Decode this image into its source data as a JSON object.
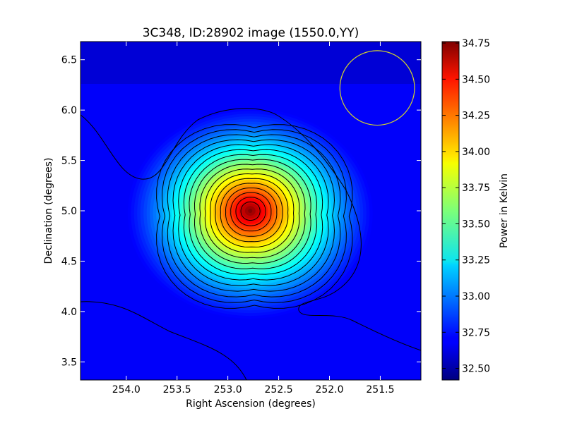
{
  "chart_data": {
    "type": "heatmap",
    "title": "3C348, ID:28902 image (1550.0,YY)",
    "xlabel": "Right Ascension (degrees)",
    "ylabel": "Declination (degrees)",
    "xlim": [
      254.45,
      251.1
    ],
    "ylim": [
      3.32,
      6.68
    ],
    "x_inverted": true,
    "xticks": [
      "254.0",
      "253.5",
      "253.0",
      "252.5",
      "252.0",
      "251.5"
    ],
    "yticks": [
      "3.5",
      "4.0",
      "4.5",
      "5.0",
      "5.5",
      "6.0",
      "6.5"
    ],
    "colorbar": {
      "label": "Power in Kelvin",
      "min": 32.42,
      "max": 34.76,
      "ticks": [
        "32.50",
        "32.75",
        "33.00",
        "33.25",
        "33.50",
        "33.75",
        "34.00",
        "34.25",
        "34.50",
        "34.75"
      ],
      "colormap": "jet"
    },
    "source": {
      "ra": 252.78,
      "dec": 5.0,
      "peak": 34.75,
      "background": 32.7
    },
    "beam_circle": {
      "ra_center": 251.53,
      "dec_center": 6.22,
      "radius_deg": 0.37,
      "color": "#d4d42a"
    },
    "contours": {
      "count": 17,
      "color": "#000000"
    }
  }
}
